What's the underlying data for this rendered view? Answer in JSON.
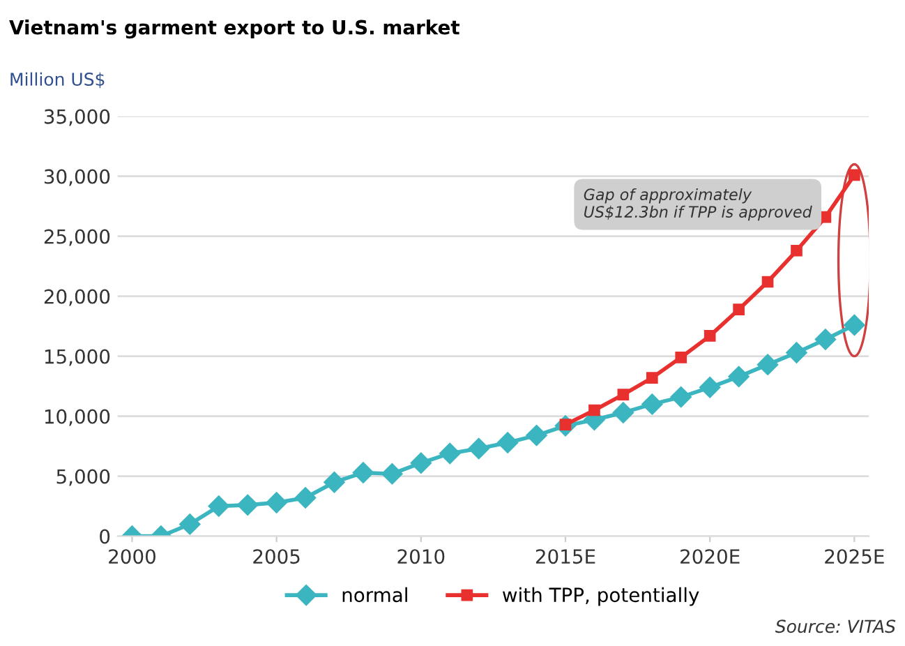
{
  "chart_data": {
    "type": "line",
    "title": "Vietnam's garment export to U.S. market",
    "ylabel": "Million US$",
    "categories": [
      "2000",
      null,
      null,
      null,
      null,
      "2005",
      null,
      null,
      null,
      null,
      "2010",
      null,
      null,
      null,
      null,
      "2015E",
      null,
      null,
      null,
      null,
      "2020E",
      null,
      null,
      null,
      null,
      "2025E"
    ],
    "series": [
      {
        "name": "normal",
        "color": "#3bb5bf",
        "marker": "diamond",
        "values": [
          0,
          0,
          1000,
          2500,
          2600,
          2800,
          3200,
          4500,
          5300,
          5200,
          6100,
          6900,
          7300,
          7800,
          8400,
          9200,
          9700,
          10300,
          11000,
          11600,
          12400,
          13300,
          14300,
          15300,
          16400,
          17600
        ]
      },
      {
        "name": "with TPP, potentially",
        "color": "#e8312f",
        "marker": "square",
        "values": [
          null,
          null,
          null,
          null,
          null,
          null,
          null,
          null,
          null,
          null,
          null,
          null,
          null,
          null,
          null,
          9300,
          10500,
          11800,
          13200,
          14900,
          16700,
          18900,
          21200,
          23800,
          26600,
          30100
        ]
      }
    ],
    "ylim": [
      0,
      35000
    ],
    "yticks": [
      {
        "value": 0,
        "label": "0"
      },
      {
        "value": 5000,
        "label": "5,000"
      },
      {
        "value": 10000,
        "label": "10,000"
      },
      {
        "value": 15000,
        "label": "15,000"
      },
      {
        "value": 20000,
        "label": "20,000"
      },
      {
        "value": 25000,
        "label": "25,000"
      },
      {
        "value": 30000,
        "label": "30,000"
      },
      {
        "value": 35000,
        "label": "35,000"
      }
    ],
    "grid": "y",
    "legend": "bottom",
    "line_style": "solid",
    "annotations": [
      "Gap of approximately US$12.3bn if TPP is approved",
      "Source: VITAS"
    ]
  }
}
